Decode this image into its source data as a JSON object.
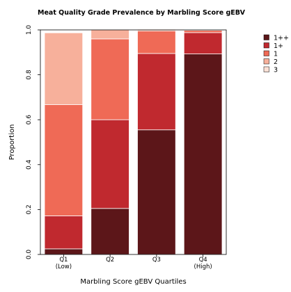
{
  "chart_data": {
    "type": "bar",
    "stacked": true,
    "title": "Meat Quality Grade Prevalence by Marbling Score gEBV",
    "xlabel": "Marbling Score gEBV Quartiles",
    "ylabel": "Proportion",
    "ylim": [
      0,
      1.0
    ],
    "yticks": [
      "0.0",
      "0.2",
      "0.4",
      "0.6",
      "0.8",
      "1.0"
    ],
    "categories": [
      [
        "Q1",
        "(Low)"
      ],
      [
        "Q2"
      ],
      [
        "Q3"
      ],
      [
        "Q4",
        "(High)"
      ]
    ],
    "series": [
      {
        "name": "1++",
        "color": "#5c1619",
        "values": [
          0.025,
          0.205,
          0.555,
          0.893
        ]
      },
      {
        "name": "1+",
        "color": "#c0292f",
        "values": [
          0.147,
          0.395,
          0.34,
          0.095
        ]
      },
      {
        "name": "1",
        "color": "#ef6a56",
        "values": [
          0.495,
          0.36,
          0.1,
          0.01
        ]
      },
      {
        "name": "2",
        "color": "#f7b09b",
        "values": [
          0.32,
          0.04,
          0.005,
          0.002
        ]
      },
      {
        "name": "3",
        "color": "#fde0d5",
        "values": [
          0.0,
          0.0,
          0.0,
          0.0
        ]
      }
    ],
    "legend_position": "right"
  }
}
